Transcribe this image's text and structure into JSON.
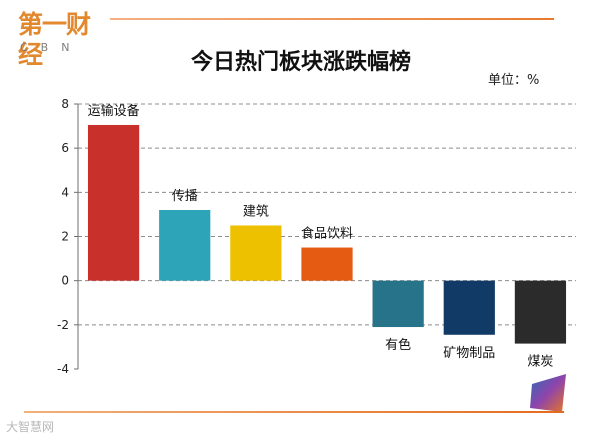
{
  "header": {
    "logo_cn": "第一财经",
    "logo_en": "CBN"
  },
  "watermark": "大智慧网",
  "chart_data": {
    "type": "bar",
    "title": "今日热门板块涨跌幅榜",
    "unit_label": "单位：%",
    "xlabel": "",
    "ylabel": "",
    "ylim": [
      -4,
      8
    ],
    "yticks": [
      -4,
      -2,
      0,
      2,
      4,
      6,
      8
    ],
    "grid": true,
    "categories": [
      "运输设备",
      "传播",
      "建筑",
      "食品饮料",
      "有色",
      "矿物制品",
      "煤炭"
    ],
    "values": [
      7.05,
      3.2,
      2.5,
      1.5,
      -2.1,
      -2.45,
      -2.85
    ],
    "colors": [
      "#c8302c",
      "#2ea4b9",
      "#edc000",
      "#e55b12",
      "#27738a",
      "#123a67",
      "#2b2b2b"
    ]
  }
}
